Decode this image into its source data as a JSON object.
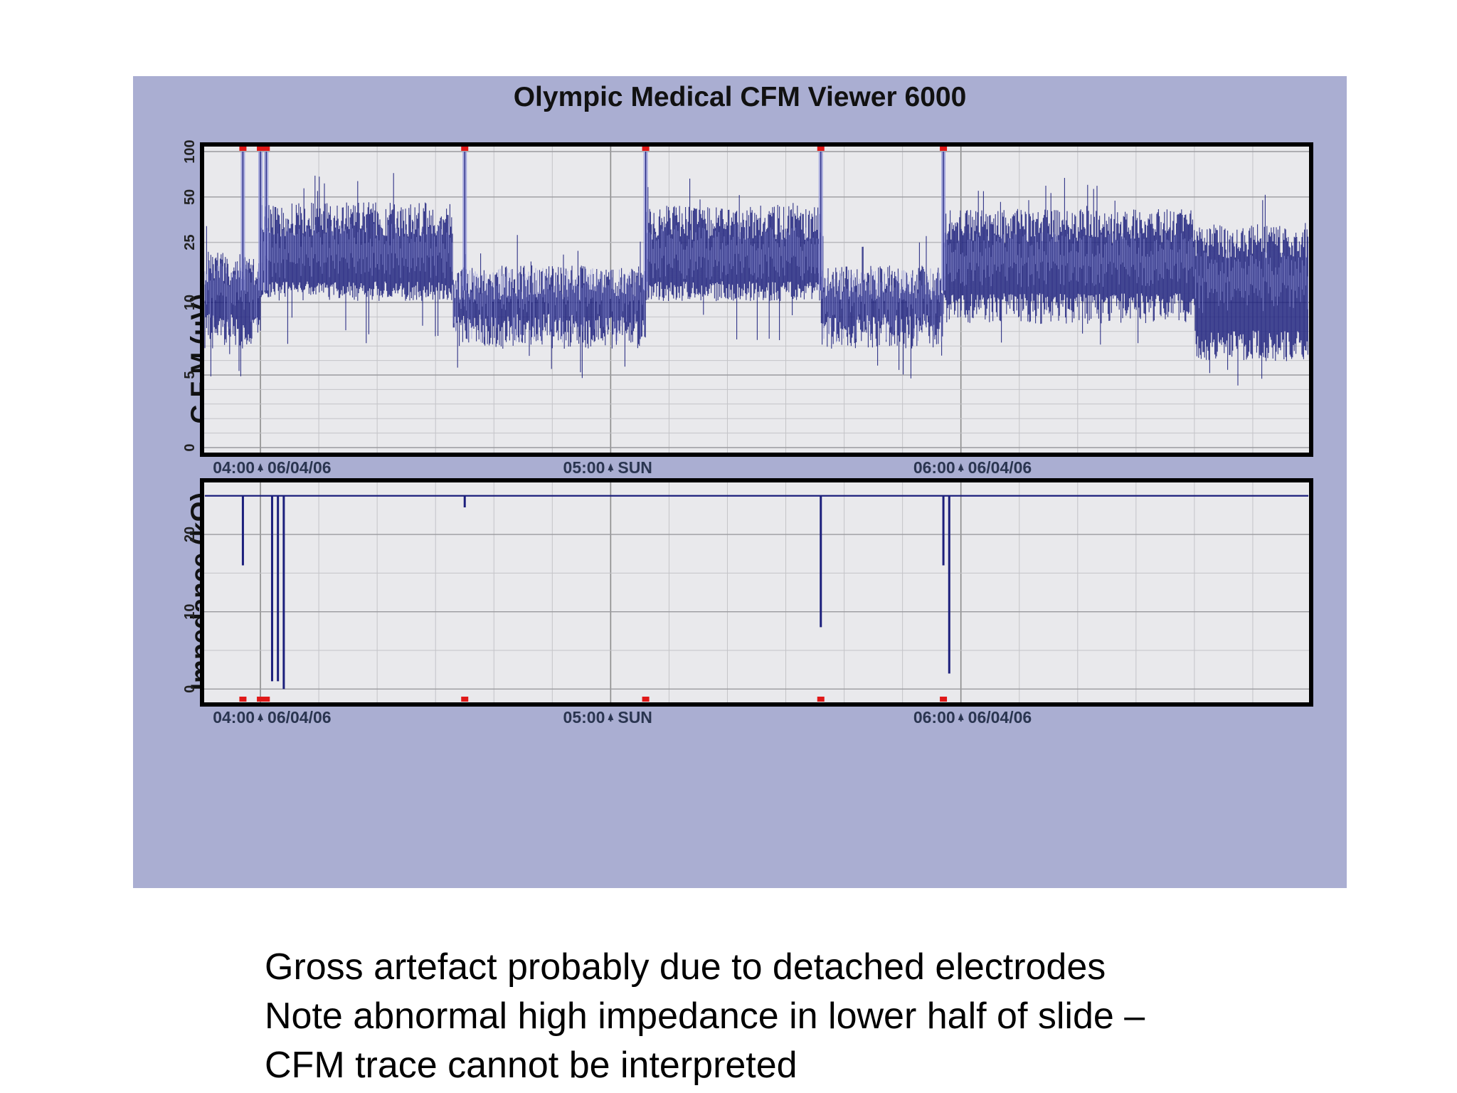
{
  "chart_data": [
    {
      "type": "line",
      "title": "Olympic Medical CFM Viewer 6000",
      "ylabel": "C F M (μV)",
      "yscale": "semi-log",
      "ylim": [
        0,
        100
      ],
      "yticks": [
        "0",
        "5",
        "10",
        "25",
        "50",
        "100"
      ],
      "xlim": [
        "03:50",
        "07:00"
      ],
      "xtick_labels": [
        {
          "time": "04:00",
          "label": "04:00",
          "date_label": "06/04/06"
        },
        {
          "time": "05:00",
          "label": "05:00",
          "date_label": "SUN"
        },
        {
          "time": "06:00",
          "label": "06:00",
          "date_label": "06/04/06"
        }
      ],
      "grid": true,
      "series": [
        {
          "color": "#1c1f7c",
          "segments": [
            {
              "from": "03:50",
              "to": "04:00",
              "lower_uV": 8,
              "upper_uV": 20
            },
            {
              "from": "04:00",
              "to": "04:33",
              "lower_uV": 12,
              "upper_uV": 42
            },
            {
              "from": "04:33",
              "to": "05:06",
              "lower_uV": 8,
              "upper_uV": 16
            },
            {
              "from": "05:06",
              "to": "05:36",
              "lower_uV": 12,
              "upper_uV": 40
            },
            {
              "from": "05:36",
              "to": "05:57",
              "lower_uV": 8,
              "upper_uV": 16
            },
            {
              "from": "05:57",
              "to": "06:40",
              "lower_uV": 10,
              "upper_uV": 38
            },
            {
              "from": "06:40",
              "to": "07:00",
              "lower_uV": 7,
              "upper_uV": 30
            }
          ],
          "artefact_spikes_to_uV": 100,
          "artefact_times": [
            "03:57",
            "04:00",
            "04:01",
            "04:35",
            "05:06",
            "05:36",
            "05:57"
          ]
        }
      ],
      "event_markers_color": "#e01818"
    },
    {
      "type": "line",
      "ylabel": "Impedance (kΩ)",
      "ylim": [
        -2,
        27
      ],
      "yticks": [
        "0",
        "10",
        "20"
      ],
      "xlim": [
        "03:50",
        "07:00"
      ],
      "xtick_labels": [
        {
          "time": "04:00",
          "label": "04:00",
          "date_label": "06/04/06"
        },
        {
          "time": "05:00",
          "label": "05:00",
          "date_label": "SUN"
        },
        {
          "time": "06:00",
          "label": "06:00",
          "date_label": "06/04/06"
        }
      ],
      "grid": true,
      "series": [
        {
          "color": "#1c1f7c",
          "baseline_kohm": 25,
          "dropouts": [
            {
              "time": "03:57",
              "min_kohm": 16
            },
            {
              "time": "04:02",
              "min_kohm": 1
            },
            {
              "time": "04:03",
              "min_kohm": 1
            },
            {
              "time": "04:04",
              "min_kohm": 0
            },
            {
              "time": "04:35",
              "min_kohm": 23.5
            },
            {
              "time": "05:36",
              "min_kohm": 8
            },
            {
              "time": "05:57",
              "min_kohm": 16
            },
            {
              "time": "05:58",
              "min_kohm": 2
            }
          ]
        }
      ],
      "event_markers_color": "#e01818"
    }
  ],
  "caption": {
    "lines": [
      "Gross artefact probably due to detached electrodes",
      "Note abnormal high impedance in lower half of slide –",
      "CFM trace cannot be interpreted"
    ]
  }
}
